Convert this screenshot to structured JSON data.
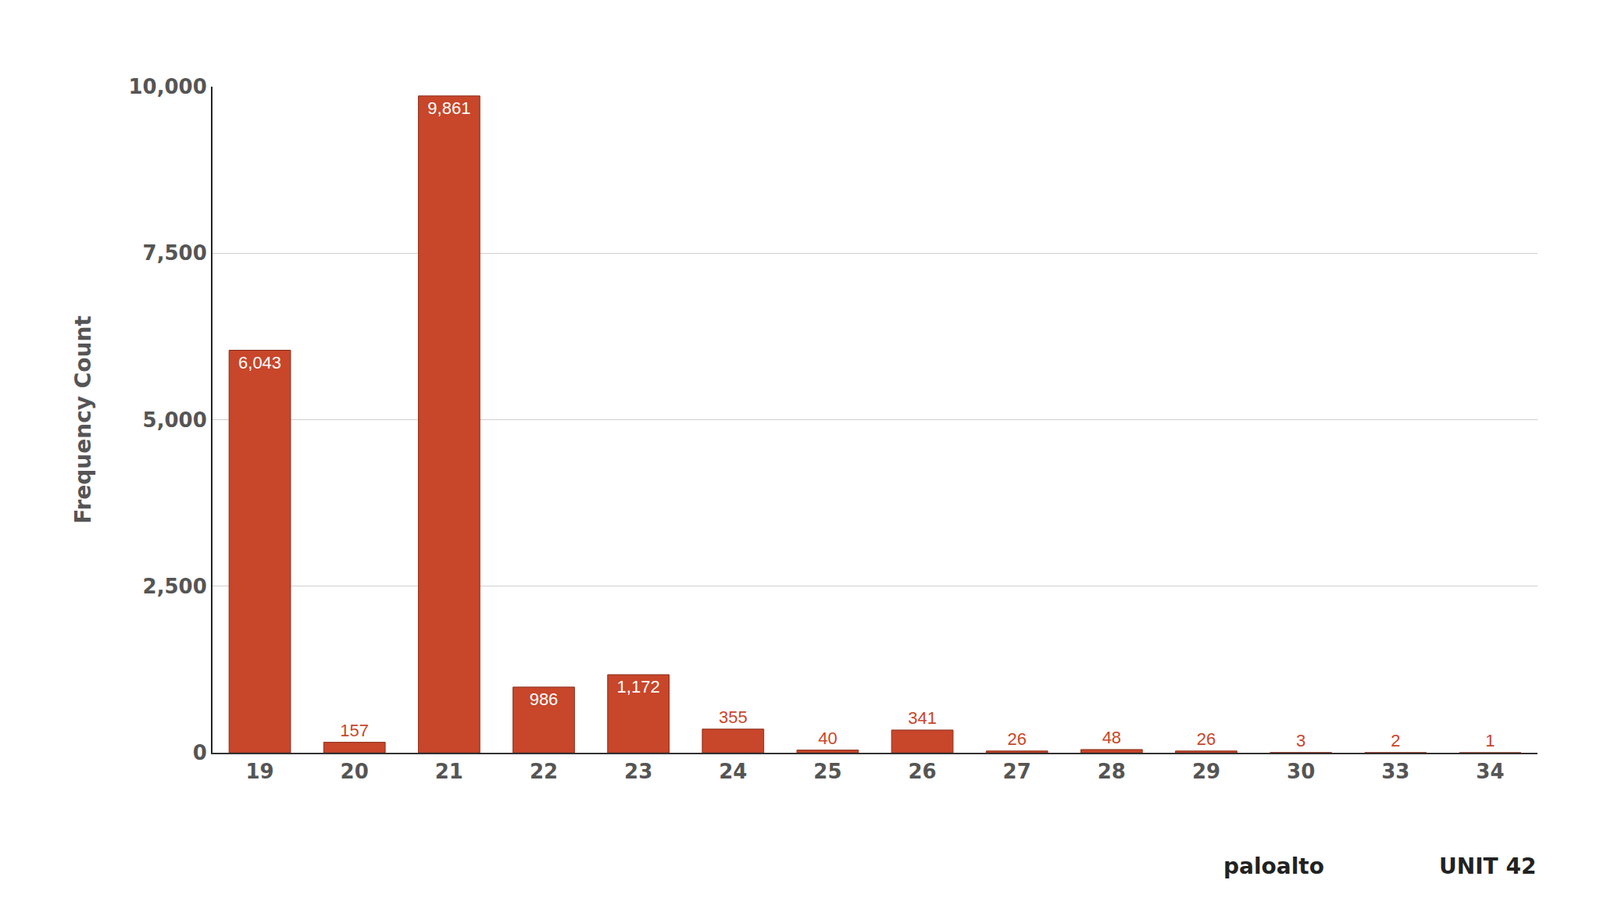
{
  "chart_data": {
    "type": "bar",
    "y_label": "Frequency Count",
    "categories": [
      "19",
      "20",
      "21",
      "22",
      "23",
      "24",
      "25",
      "26",
      "27",
      "28",
      "29",
      "30",
      "33",
      "34"
    ],
    "values": [
      6043,
      157,
      9861,
      986,
      1172,
      355,
      40,
      341,
      26,
      48,
      26,
      3,
      2,
      1
    ],
    "value_labels": [
      "6,043",
      "157",
      "9,861",
      "986",
      "1,172",
      "355",
      "40",
      "341",
      "26",
      "48",
      "26",
      "3",
      "2",
      "1"
    ],
    "color": "#c8462a",
    "ylim": [
      0,
      10000
    ],
    "yticks": [
      0,
      {
        "value": 2500,
        "label": "2,500"
      },
      {
        "value": 5000,
        "label": "5,000"
      },
      {
        "value": 7500,
        "label": "7,500"
      },
      {
        "value": 10000,
        "label": "10,000"
      }
    ],
    "grid": true,
    "data_labels": true,
    "annotations": [
      "paloalto",
      "UNIT 42"
    ]
  }
}
